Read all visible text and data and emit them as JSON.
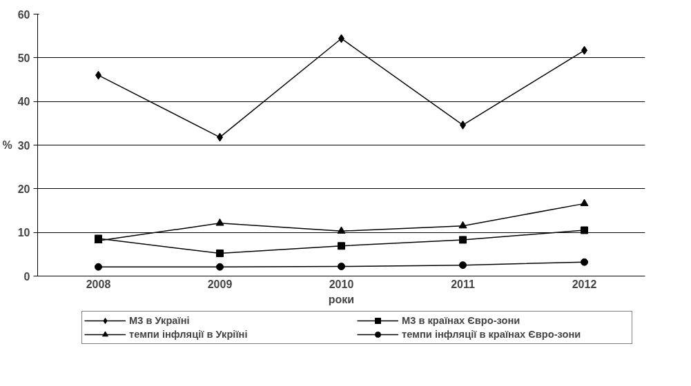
{
  "chart_data": {
    "type": "line",
    "xlabel": "роки",
    "ylabel": "%",
    "categories": [
      "2008",
      "2009",
      "2010",
      "2011",
      "2012"
    ],
    "series": [
      {
        "name": "М3 в Україні",
        "color": "#000000",
        "marker": "diamond",
        "values": [
          46.0,
          31.8,
          54.4,
          34.6,
          51.7
        ]
      },
      {
        "name": "М3 в країнах Євро-зони",
        "color": "#000000",
        "marker": "square",
        "values": [
          8.6,
          5.2,
          6.9,
          8.3,
          10.5
        ]
      },
      {
        "name": "темпи інфляції в Укріїні",
        "color": "#000000",
        "marker": "triangle",
        "values": [
          8.1,
          12.1,
          10.3,
          11.5,
          16.6
        ]
      },
      {
        "name": "темпи інфляції в країнах Євро-зони",
        "color": "#000000",
        "marker": "circle",
        "values": [
          2.1,
          2.1,
          2.2,
          2.5,
          3.2
        ]
      }
    ],
    "ylim": [
      0,
      60
    ],
    "yticks": [
      0,
      10,
      20,
      30,
      40,
      50,
      60
    ],
    "grid": "y",
    "legend": "bottom",
    "line_style": "solid"
  }
}
